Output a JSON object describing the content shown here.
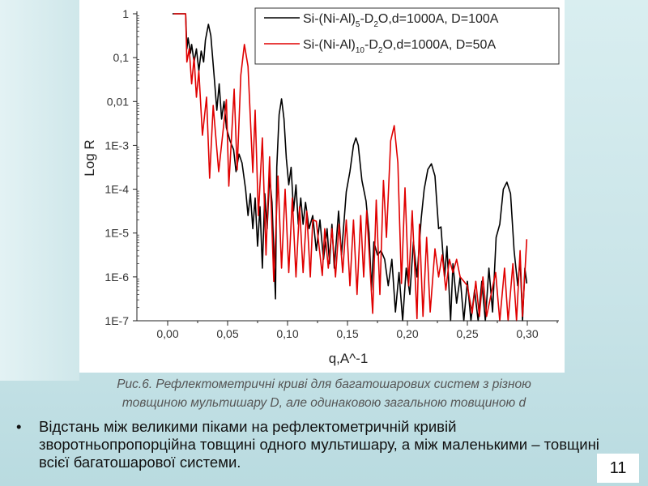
{
  "chart_data": {
    "type": "line",
    "xlabel": "q,A^-1",
    "ylabel": "Log R",
    "yscale": "log",
    "xlim": [
      -0.0257,
      0.325
    ],
    "ylim": [
      1e-07,
      1
    ],
    "x_ticks": [
      "0,00",
      "0,05",
      "0,10",
      "0,15",
      "0,20",
      "0,25",
      "0,30"
    ],
    "x_tick_values": [
      0,
      0.05,
      0.1,
      0.15,
      0.2,
      0.25,
      0.3
    ],
    "y_ticks": [
      "1",
      "0,1",
      "0,01",
      "1E-3",
      "1E-4",
      "1E-5",
      "1E-6",
      "1E-7"
    ],
    "y_tick_log_values": [
      0,
      -1,
      -2,
      -3,
      -4,
      -5,
      -6,
      -7
    ],
    "legend_placement": "top-right",
    "series": [
      {
        "name_parts": {
          "a": "Si-(Ni-Al)",
          "sub1": "5",
          "b": "-D",
          "sub2": "2",
          "c": "O,d=1000A, D=100A"
        },
        "color": "#000000",
        "points_log10": [
          [
            0.004,
            0
          ],
          [
            0.015,
            0
          ],
          [
            0.016,
            -0.8
          ],
          [
            0.017,
            -0.55
          ],
          [
            0.019,
            -0.9
          ],
          [
            0.02,
            -0.7
          ],
          [
            0.022,
            -1.1
          ],
          [
            0.024,
            -0.8
          ],
          [
            0.026,
            -1.3
          ],
          [
            0.028,
            -0.85
          ],
          [
            0.03,
            -1.1
          ],
          [
            0.0315,
            -0.6
          ],
          [
            0.034,
            -0.24
          ],
          [
            0.036,
            -0.5
          ],
          [
            0.039,
            -1.5
          ],
          [
            0.041,
            -2.2
          ],
          [
            0.043,
            -1.6
          ],
          [
            0.045,
            -2.4
          ],
          [
            0.047,
            -2.0
          ],
          [
            0.049,
            -2.6
          ],
          [
            0.052,
            -2.9
          ],
          [
            0.055,
            -3.1
          ],
          [
            0.057,
            -3.6
          ],
          [
            0.0595,
            -3.2
          ],
          [
            0.062,
            -3.4
          ],
          [
            0.065,
            -4.0
          ],
          [
            0.067,
            -4.6
          ],
          [
            0.069,
            -4.1
          ],
          [
            0.071,
            -4.9
          ],
          [
            0.073,
            -4.2
          ],
          [
            0.075,
            -5.3
          ],
          [
            0.077,
            -4.4
          ],
          [
            0.079,
            -5.8
          ],
          [
            0.081,
            -4.1
          ],
          [
            0.083,
            -4.9
          ],
          [
            0.085,
            -3.7
          ],
          [
            0.087,
            -4.3
          ],
          [
            0.0899,
            -6.5
          ],
          [
            0.091,
            -3.5
          ],
          [
            0.093,
            -2.3
          ],
          [
            0.095,
            -1.94
          ],
          [
            0.097,
            -2.4
          ],
          [
            0.099,
            -3.3
          ],
          [
            0.101,
            -3.9
          ],
          [
            0.103,
            -3.5
          ],
          [
            0.105,
            -4.5
          ],
          [
            0.107,
            -3.9
          ],
          [
            0.109,
            -4.8
          ],
          [
            0.111,
            -4.2
          ],
          [
            0.113,
            -4.8
          ],
          [
            0.115,
            -4.3
          ],
          [
            0.118,
            -4.9
          ],
          [
            0.121,
            -4.6
          ],
          [
            0.124,
            -5.4
          ],
          [
            0.127,
            -4.7
          ],
          [
            0.13,
            -5.6
          ],
          [
            0.133,
            -4.9
          ],
          [
            0.135,
            -5.7
          ],
          [
            0.137,
            -4.8
          ],
          [
            0.139,
            -5.8
          ],
          [
            0.1426,
            -4.5
          ],
          [
            0.145,
            -5.5
          ],
          [
            0.149,
            -4.06
          ],
          [
            0.152,
            -3.6
          ],
          [
            0.155,
            -3.0
          ],
          [
            0.157,
            -2.83
          ],
          [
            0.159,
            -3.0
          ],
          [
            0.162,
            -3.8
          ],
          [
            0.1655,
            -4.27
          ],
          [
            0.168,
            -5.0
          ],
          [
            0.17,
            -6.3
          ],
          [
            0.172,
            -5.2
          ],
          [
            0.175,
            -5.5
          ],
          [
            0.178,
            -5.4
          ],
          [
            0.181,
            -5.6
          ],
          [
            0.184,
            -6.2
          ],
          [
            0.187,
            -5.6
          ],
          [
            0.19,
            -6.8
          ],
          [
            0.193,
            -5.9
          ],
          [
            0.196,
            -7.0
          ],
          [
            0.199,
            -5.8
          ],
          [
            0.202,
            -6.4
          ],
          [
            0.205,
            -5.2
          ],
          [
            0.208,
            -6.0
          ],
          [
            0.2115,
            -4.67
          ],
          [
            0.214,
            -4.0
          ],
          [
            0.217,
            -3.55
          ],
          [
            0.22,
            -3.42
          ],
          [
            0.223,
            -3.7
          ],
          [
            0.226,
            -4.9
          ],
          [
            0.228,
            -4.86
          ],
          [
            0.231,
            -6.0
          ],
          [
            0.233,
            -5.3
          ],
          [
            0.236,
            -7.0
          ],
          [
            0.238,
            -5.7
          ],
          [
            0.241,
            -6.6
          ],
          [
            0.244,
            -6.0
          ],
          [
            0.247,
            -7.0
          ],
          [
            0.25,
            -6.1
          ],
          [
            0.253,
            -7.0
          ],
          [
            0.256,
            -6.3
          ],
          [
            0.259,
            -7.0
          ],
          [
            0.262,
            -6.1
          ],
          [
            0.265,
            -7.0
          ],
          [
            0.268,
            -5.8
          ],
          [
            0.271,
            -6.8
          ],
          [
            0.274,
            -5.1
          ],
          [
            0.277,
            -4.8
          ],
          [
            0.28,
            -4.0
          ],
          [
            0.283,
            -3.84
          ],
          [
            0.286,
            -4.1
          ],
          [
            0.289,
            -5.4
          ],
          [
            0.292,
            -6.2
          ],
          [
            0.294,
            -5.6
          ],
          [
            0.296,
            -7.0
          ],
          [
            0.298,
            -5.8
          ],
          [
            0.2995,
            -6.15
          ]
        ]
      },
      {
        "name_parts": {
          "a": "Si-(Ni-Al)",
          "sub1": "10",
          "b": "-D",
          "sub2": "2",
          "c": "O,d=1000A, D=50A"
        },
        "color": "#e00000",
        "points_log10": [
          [
            0.005,
            0
          ],
          [
            0.015,
            0
          ],
          [
            0.016,
            -1.1
          ],
          [
            0.018,
            -0.8
          ],
          [
            0.02,
            -1.6
          ],
          [
            0.022,
            -1.0
          ],
          [
            0.024,
            -1.9
          ],
          [
            0.026,
            -1.3
          ],
          [
            0.029,
            -2.77
          ],
          [
            0.0324,
            -1.9
          ],
          [
            0.035,
            -3.75
          ],
          [
            0.038,
            -2.09
          ],
          [
            0.0426,
            -3.6
          ],
          [
            0.049,
            -1.96
          ],
          [
            0.051,
            -3.93
          ],
          [
            0.0555,
            -1.72
          ],
          [
            0.058,
            -3.56
          ],
          [
            0.061,
            -1.4
          ],
          [
            0.064,
            -0.7
          ],
          [
            0.067,
            -1.2
          ],
          [
            0.071,
            -3.62
          ],
          [
            0.073,
            -2.2
          ],
          [
            0.0757,
            -4.6
          ],
          [
            0.079,
            -2.83
          ],
          [
            0.082,
            -5.5
          ],
          [
            0.085,
            -3.26
          ],
          [
            0.0885,
            -6.1
          ],
          [
            0.092,
            -3.7
          ],
          [
            0.095,
            -5.8
          ],
          [
            0.098,
            -4.0
          ],
          [
            0.101,
            -5.9
          ],
          [
            0.104,
            -4.2
          ],
          [
            0.107,
            -6.0
          ],
          [
            0.11,
            -4.4
          ],
          [
            0.113,
            -5.9
          ],
          [
            0.116,
            -4.5
          ],
          [
            0.119,
            -6.0
          ],
          [
            0.121,
            -4.7
          ],
          [
            0.124,
            -4.73
          ],
          [
            0.129,
            -5.97
          ],
          [
            0.131,
            -4.9
          ],
          [
            0.134,
            -5.8
          ],
          [
            0.137,
            -4.9
          ],
          [
            0.14,
            -6.0
          ],
          [
            0.143,
            -4.8
          ],
          [
            0.146,
            -5.9
          ],
          [
            0.149,
            -4.7
          ],
          [
            0.152,
            -6.2
          ],
          [
            0.155,
            -4.7
          ],
          [
            0.158,
            -6.4
          ],
          [
            0.161,
            -4.6
          ],
          [
            0.1635,
            -6.0
          ],
          [
            0.166,
            -4.49
          ],
          [
            0.171,
            -6.83
          ],
          [
            0.174,
            -4.25
          ],
          [
            0.177,
            -6.4
          ],
          [
            0.18,
            -3.8
          ],
          [
            0.1825,
            -5.1
          ],
          [
            0.186,
            -2.9
          ],
          [
            0.189,
            -2.55
          ],
          [
            0.192,
            -3.4
          ],
          [
            0.195,
            -6.15
          ],
          [
            0.198,
            -3.97
          ],
          [
            0.201,
            -6.2
          ],
          [
            0.204,
            -4.49
          ],
          [
            0.208,
            -6.95
          ],
          [
            0.21,
            -4.8
          ],
          [
            0.213,
            -6.9
          ],
          [
            0.216,
            -5.1
          ],
          [
            0.219,
            -6.8
          ],
          [
            0.223,
            -5.36
          ],
          [
            0.226,
            -6.0
          ],
          [
            0.229,
            -5.5
          ],
          [
            0.232,
            -6.3
          ],
          [
            0.235,
            -5.6
          ],
          [
            0.238,
            -5.9
          ],
          [
            0.241,
            -5.6
          ],
          [
            0.244,
            -6.0
          ],
          [
            0.247,
            -6.1
          ],
          [
            0.25,
            -6.2
          ],
          [
            0.254,
            -6.83
          ],
          [
            0.257,
            -6.1
          ],
          [
            0.26,
            -6.9
          ],
          [
            0.263,
            -6.0
          ],
          [
            0.266,
            -6.9
          ],
          [
            0.2736,
            -5.9
          ],
          [
            0.277,
            -7.0
          ],
          [
            0.281,
            -5.8
          ],
          [
            0.284,
            -7.0
          ],
          [
            0.288,
            -5.7
          ],
          [
            0.291,
            -7.0
          ],
          [
            0.294,
            -5.4
          ],
          [
            0.296,
            -6.9
          ],
          [
            0.2995,
            -5.14
          ]
        ]
      }
    ]
  },
  "caption": {
    "line1": "Рис.6. Рефлектометричні криві для багатошарових систем з різною",
    "line2": "товщиною мультишару D, але одинаковою загальною товщиною d"
  },
  "bullet": {
    "marker": "•",
    "text": "Відстань між великими піками на рефлектометричній кривій зворотньопропорційна товщині одного мультишару, а між маленькими – товщині всієї багатошарової системи."
  },
  "page_number": "11"
}
